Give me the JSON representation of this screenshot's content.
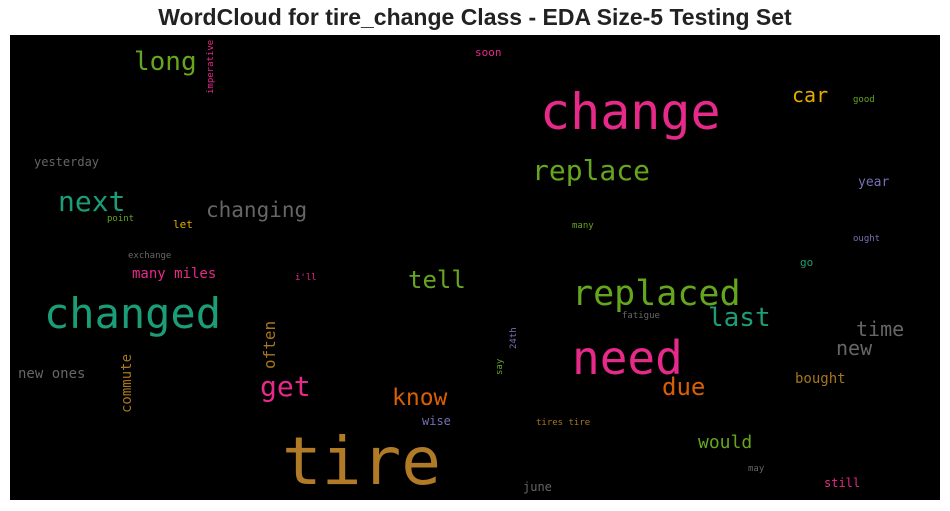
{
  "title": "WordCloud for tire_change Class - EDA Size-5 Testing Set",
  "words": [
    {
      "text": "tire",
      "color": "#b07a26"
    },
    {
      "text": "change",
      "color": "#e7298a"
    },
    {
      "text": "changed",
      "color": "#1b9e77"
    },
    {
      "text": "need",
      "color": "#e7298a"
    },
    {
      "text": "replaced",
      "color": "#66a61e"
    },
    {
      "text": "replace",
      "color": "#66a61e"
    },
    {
      "text": "next",
      "color": "#1b9e77"
    },
    {
      "text": "long",
      "color": "#66a61e"
    },
    {
      "text": "changing",
      "color": "#666666"
    },
    {
      "text": "last",
      "color": "#1b9e77"
    },
    {
      "text": "get",
      "color": "#e7298a"
    },
    {
      "text": "tell",
      "color": "#66a61e"
    },
    {
      "text": "know",
      "color": "#d95f02"
    },
    {
      "text": "due",
      "color": "#d95f02"
    },
    {
      "text": "time",
      "color": "#666666"
    },
    {
      "text": "new",
      "color": "#666666"
    },
    {
      "text": "car",
      "color": "#e6ab02"
    },
    {
      "text": "would",
      "color": "#66a61e"
    },
    {
      "text": "often",
      "color": "#a6761d"
    },
    {
      "text": "commute",
      "color": "#a6761d"
    },
    {
      "text": "many miles",
      "color": "#e7298a"
    },
    {
      "text": "bought",
      "color": "#a6761d"
    },
    {
      "text": "new ones",
      "color": "#666666"
    },
    {
      "text": "yesterday",
      "color": "#666666"
    },
    {
      "text": "year",
      "color": "#7570b3"
    },
    {
      "text": "still",
      "color": "#e7298a"
    },
    {
      "text": "june",
      "color": "#666666"
    },
    {
      "text": "wise",
      "color": "#7570b3"
    },
    {
      "text": "let",
      "color": "#e6ab02"
    },
    {
      "text": "go",
      "color": "#1b9e77"
    },
    {
      "text": "soon",
      "color": "#e7298a"
    },
    {
      "text": "good",
      "color": "#66a61e"
    },
    {
      "text": "ought",
      "color": "#7570b3"
    },
    {
      "text": "exchange",
      "color": "#666666"
    },
    {
      "text": "point",
      "color": "#66a61e"
    },
    {
      "text": "i'll",
      "color": "#e7298a"
    },
    {
      "text": "many",
      "color": "#66a61e"
    },
    {
      "text": "fatigue",
      "color": "#666666"
    },
    {
      "text": "24th",
      "color": "#7570b3"
    },
    {
      "text": "say",
      "color": "#66a61e"
    },
    {
      "text": "tires tire",
      "color": "#a6761d"
    },
    {
      "text": "may",
      "color": "#666666"
    },
    {
      "text": "imperative",
      "color": "#e7298a"
    }
  ]
}
